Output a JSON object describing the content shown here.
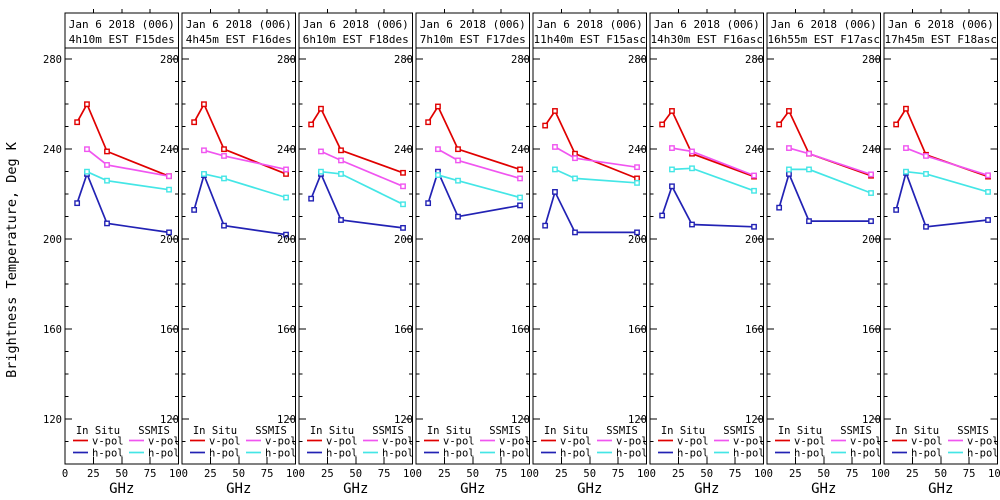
{
  "figure": {
    "y_axis_title": "Brightness Temperature, Deg K",
    "x_axis_title": "GHz",
    "background": "#ffffff",
    "axis_color": "#000000",
    "x_ticks": [
      0,
      25,
      50,
      75,
      100
    ],
    "y_ticks": [
      120,
      160,
      200,
      240,
      280
    ],
    "y_minor_step": 10,
    "xlim": [
      0,
      100
    ],
    "ylim": [
      100,
      285
    ]
  },
  "legend": {
    "insitu_header": "In Situ",
    "ssmis_header": "SSMIS",
    "vpol_label": "v-pol",
    "hpol_label": "h-pol"
  },
  "colors": {
    "insitu_vpol": "#e00000",
    "insitu_hpol": "#2222b4",
    "ssmis_vpol": "#f055f0",
    "ssmis_hpol": "#44e6e6"
  },
  "chart_data": [
    {
      "type": "line",
      "title_line1": "Jan 6 2018 (006)",
      "title_line2": "4h10m EST F15des",
      "xlabel": "GHz",
      "ylabel": "Brightness Temperature, Deg K",
      "xlim": [
        0,
        100
      ],
      "ylim": [
        100,
        285
      ],
      "series": [
        {
          "name": "In Situ v-pol",
          "color": "insitu_vpol",
          "x": [
            10.7,
            19.35,
            37,
            91.655
          ],
          "y": [
            252,
            260,
            239,
            228
          ]
        },
        {
          "name": "In Situ h-pol",
          "color": "insitu_hpol",
          "x": [
            10.7,
            19.35,
            37,
            91.655
          ],
          "y": [
            216,
            229,
            207,
            203
          ]
        },
        {
          "name": "SSMIS v-pol",
          "color": "ssmis_vpol",
          "x": [
            19.35,
            37,
            91.655
          ],
          "y": [
            240,
            233,
            228
          ]
        },
        {
          "name": "SSMIS h-pol",
          "color": "ssmis_hpol",
          "x": [
            19.35,
            37,
            91.655
          ],
          "y": [
            230,
            226,
            222
          ]
        }
      ]
    },
    {
      "type": "line",
      "title_line1": "Jan 6 2018 (006)",
      "title_line2": "4h45m EST F16des",
      "xlabel": "GHz",
      "ylabel": "Brightness Temperature, Deg K",
      "xlim": [
        0,
        100
      ],
      "ylim": [
        100,
        285
      ],
      "series": [
        {
          "name": "In Situ v-pol",
          "color": "insitu_vpol",
          "x": [
            10.7,
            19.35,
            37,
            91.655
          ],
          "y": [
            252,
            260,
            240,
            229
          ]
        },
        {
          "name": "In Situ h-pol",
          "color": "insitu_hpol",
          "x": [
            10.7,
            19.35,
            37,
            91.655
          ],
          "y": [
            213,
            228.5,
            206,
            202
          ]
        },
        {
          "name": "SSMIS v-pol",
          "color": "ssmis_vpol",
          "x": [
            19.35,
            37,
            91.655
          ],
          "y": [
            239.5,
            237,
            231
          ]
        },
        {
          "name": "SSMIS h-pol",
          "color": "ssmis_hpol",
          "x": [
            19.35,
            37,
            91.655
          ],
          "y": [
            229,
            227,
            218.5
          ]
        }
      ]
    },
    {
      "type": "line",
      "title_line1": "Jan 6 2018 (006)",
      "title_line2": "6h10m EST F18des",
      "xlabel": "GHz",
      "ylabel": "Brightness Temperature, Deg K",
      "xlim": [
        0,
        100
      ],
      "ylim": [
        100,
        285
      ],
      "series": [
        {
          "name": "In Situ v-pol",
          "color": "insitu_vpol",
          "x": [
            10.7,
            19.35,
            37,
            91.655
          ],
          "y": [
            251,
            258,
            239.5,
            229.5
          ]
        },
        {
          "name": "In Situ h-pol",
          "color": "insitu_hpol",
          "x": [
            10.7,
            19.35,
            37,
            91.655
          ],
          "y": [
            218,
            229,
            208.5,
            205
          ]
        },
        {
          "name": "SSMIS v-pol",
          "color": "ssmis_vpol",
          "x": [
            19.35,
            37,
            91.655
          ],
          "y": [
            239,
            235,
            223.5
          ]
        },
        {
          "name": "SSMIS h-pol",
          "color": "ssmis_hpol",
          "x": [
            19.35,
            37,
            91.655
          ],
          "y": [
            230,
            229,
            215.5
          ]
        }
      ]
    },
    {
      "type": "line",
      "title_line1": "Jan 6 2018 (006)",
      "title_line2": "7h10m EST F17des",
      "xlabel": "GHz",
      "ylabel": "Brightness Temperature, Deg K",
      "xlim": [
        0,
        100
      ],
      "ylim": [
        100,
        285
      ],
      "series": [
        {
          "name": "In Situ v-pol",
          "color": "insitu_vpol",
          "x": [
            10.7,
            19.35,
            37,
            91.655
          ],
          "y": [
            252,
            259,
            240,
            231
          ]
        },
        {
          "name": "In Situ h-pol",
          "color": "insitu_hpol",
          "x": [
            10.7,
            19.35,
            37,
            91.655
          ],
          "y": [
            216,
            230,
            210,
            215
          ]
        },
        {
          "name": "SSMIS v-pol",
          "color": "ssmis_vpol",
          "x": [
            19.35,
            37,
            91.655
          ],
          "y": [
            240,
            235,
            227
          ]
        },
        {
          "name": "SSMIS h-pol",
          "color": "ssmis_hpol",
          "x": [
            19.35,
            37,
            91.655
          ],
          "y": [
            228.5,
            226,
            218.5
          ]
        }
      ]
    },
    {
      "type": "line",
      "title_line1": "Jan 6 2018 (006)",
      "title_line2": "11h40m EST F15asc",
      "xlabel": "GHz",
      "ylabel": "Brightness Temperature, Deg K",
      "xlim": [
        0,
        100
      ],
      "ylim": [
        100,
        285
      ],
      "series": [
        {
          "name": "In Situ v-pol",
          "color": "insitu_vpol",
          "x": [
            10.7,
            19.35,
            37,
            91.655
          ],
          "y": [
            250.5,
            257,
            238,
            227
          ]
        },
        {
          "name": "In Situ h-pol",
          "color": "insitu_hpol",
          "x": [
            10.7,
            19.35,
            37,
            91.655
          ],
          "y": [
            206,
            221,
            203,
            203
          ]
        },
        {
          "name": "SSMIS v-pol",
          "color": "ssmis_vpol",
          "x": [
            19.35,
            37,
            91.655
          ],
          "y": [
            241,
            236,
            232
          ]
        },
        {
          "name": "SSMIS h-pol",
          "color": "ssmis_hpol",
          "x": [
            19.35,
            37,
            91.655
          ],
          "y": [
            231,
            227,
            225
          ]
        }
      ]
    },
    {
      "type": "line",
      "title_line1": "Jan 6 2018 (006)",
      "title_line2": "14h30m EST F16asc",
      "xlabel": "GHz",
      "ylabel": "Brightness Temperature, Deg K",
      "xlim": [
        0,
        100
      ],
      "ylim": [
        100,
        285
      ],
      "series": [
        {
          "name": "In Situ v-pol",
          "color": "insitu_vpol",
          "x": [
            10.7,
            19.35,
            37,
            91.655
          ],
          "y": [
            251,
            257,
            238,
            227.8
          ]
        },
        {
          "name": "In Situ h-pol",
          "color": "insitu_hpol",
          "x": [
            10.7,
            19.35,
            37,
            91.655
          ],
          "y": [
            210.5,
            223.5,
            206.5,
            205.5
          ]
        },
        {
          "name": "SSMIS v-pol",
          "color": "ssmis_vpol",
          "x": [
            19.35,
            37,
            91.655
          ],
          "y": [
            240.5,
            239,
            228.3
          ]
        },
        {
          "name": "SSMIS h-pol",
          "color": "ssmis_hpol",
          "x": [
            19.35,
            37,
            91.655
          ],
          "y": [
            231,
            231.5,
            221.5
          ]
        }
      ]
    },
    {
      "type": "line",
      "title_line1": "Jan 6 2018 (006)",
      "title_line2": "16h55m EST F17asc",
      "xlabel": "GHz",
      "ylabel": "Brightness Temperature, Deg K",
      "xlim": [
        0,
        100
      ],
      "ylim": [
        100,
        285
      ],
      "series": [
        {
          "name": "In Situ v-pol",
          "color": "insitu_vpol",
          "x": [
            10.7,
            19.35,
            37,
            91.655
          ],
          "y": [
            251,
            257,
            238,
            228.2
          ]
        },
        {
          "name": "In Situ h-pol",
          "color": "insitu_hpol",
          "x": [
            10.7,
            19.35,
            37,
            91.655
          ],
          "y": [
            214,
            229,
            208,
            208
          ]
        },
        {
          "name": "SSMIS v-pol",
          "color": "ssmis_vpol",
          "x": [
            19.35,
            37,
            91.655
          ],
          "y": [
            240.5,
            238,
            228.8
          ]
        },
        {
          "name": "SSMIS h-pol",
          "color": "ssmis_hpol",
          "x": [
            19.35,
            37,
            91.655
          ],
          "y": [
            231,
            231,
            220.5
          ]
        }
      ]
    },
    {
      "type": "line",
      "title_line1": "Jan 6 2018 (006)",
      "title_line2": "17h45m EST F18asc",
      "xlabel": "GHz",
      "ylabel": "Brightness Temperature, Deg K",
      "xlim": [
        0,
        100
      ],
      "ylim": [
        100,
        285
      ],
      "series": [
        {
          "name": "In Situ v-pol",
          "color": "insitu_vpol",
          "x": [
            10.7,
            19.35,
            37,
            91.655
          ],
          "y": [
            251,
            258,
            237.5,
            227.8
          ]
        },
        {
          "name": "In Situ h-pol",
          "color": "insitu_hpol",
          "x": [
            10.7,
            19.35,
            37,
            91.655
          ],
          "y": [
            213,
            229.5,
            205.5,
            208.5
          ]
        },
        {
          "name": "SSMIS v-pol",
          "color": "ssmis_vpol",
          "x": [
            19.35,
            37,
            91.655
          ],
          "y": [
            240.5,
            237,
            228.4
          ]
        },
        {
          "name": "SSMIS h-pol",
          "color": "ssmis_hpol",
          "x": [
            19.35,
            37,
            91.655
          ],
          "y": [
            230,
            229,
            221
          ]
        }
      ]
    }
  ]
}
